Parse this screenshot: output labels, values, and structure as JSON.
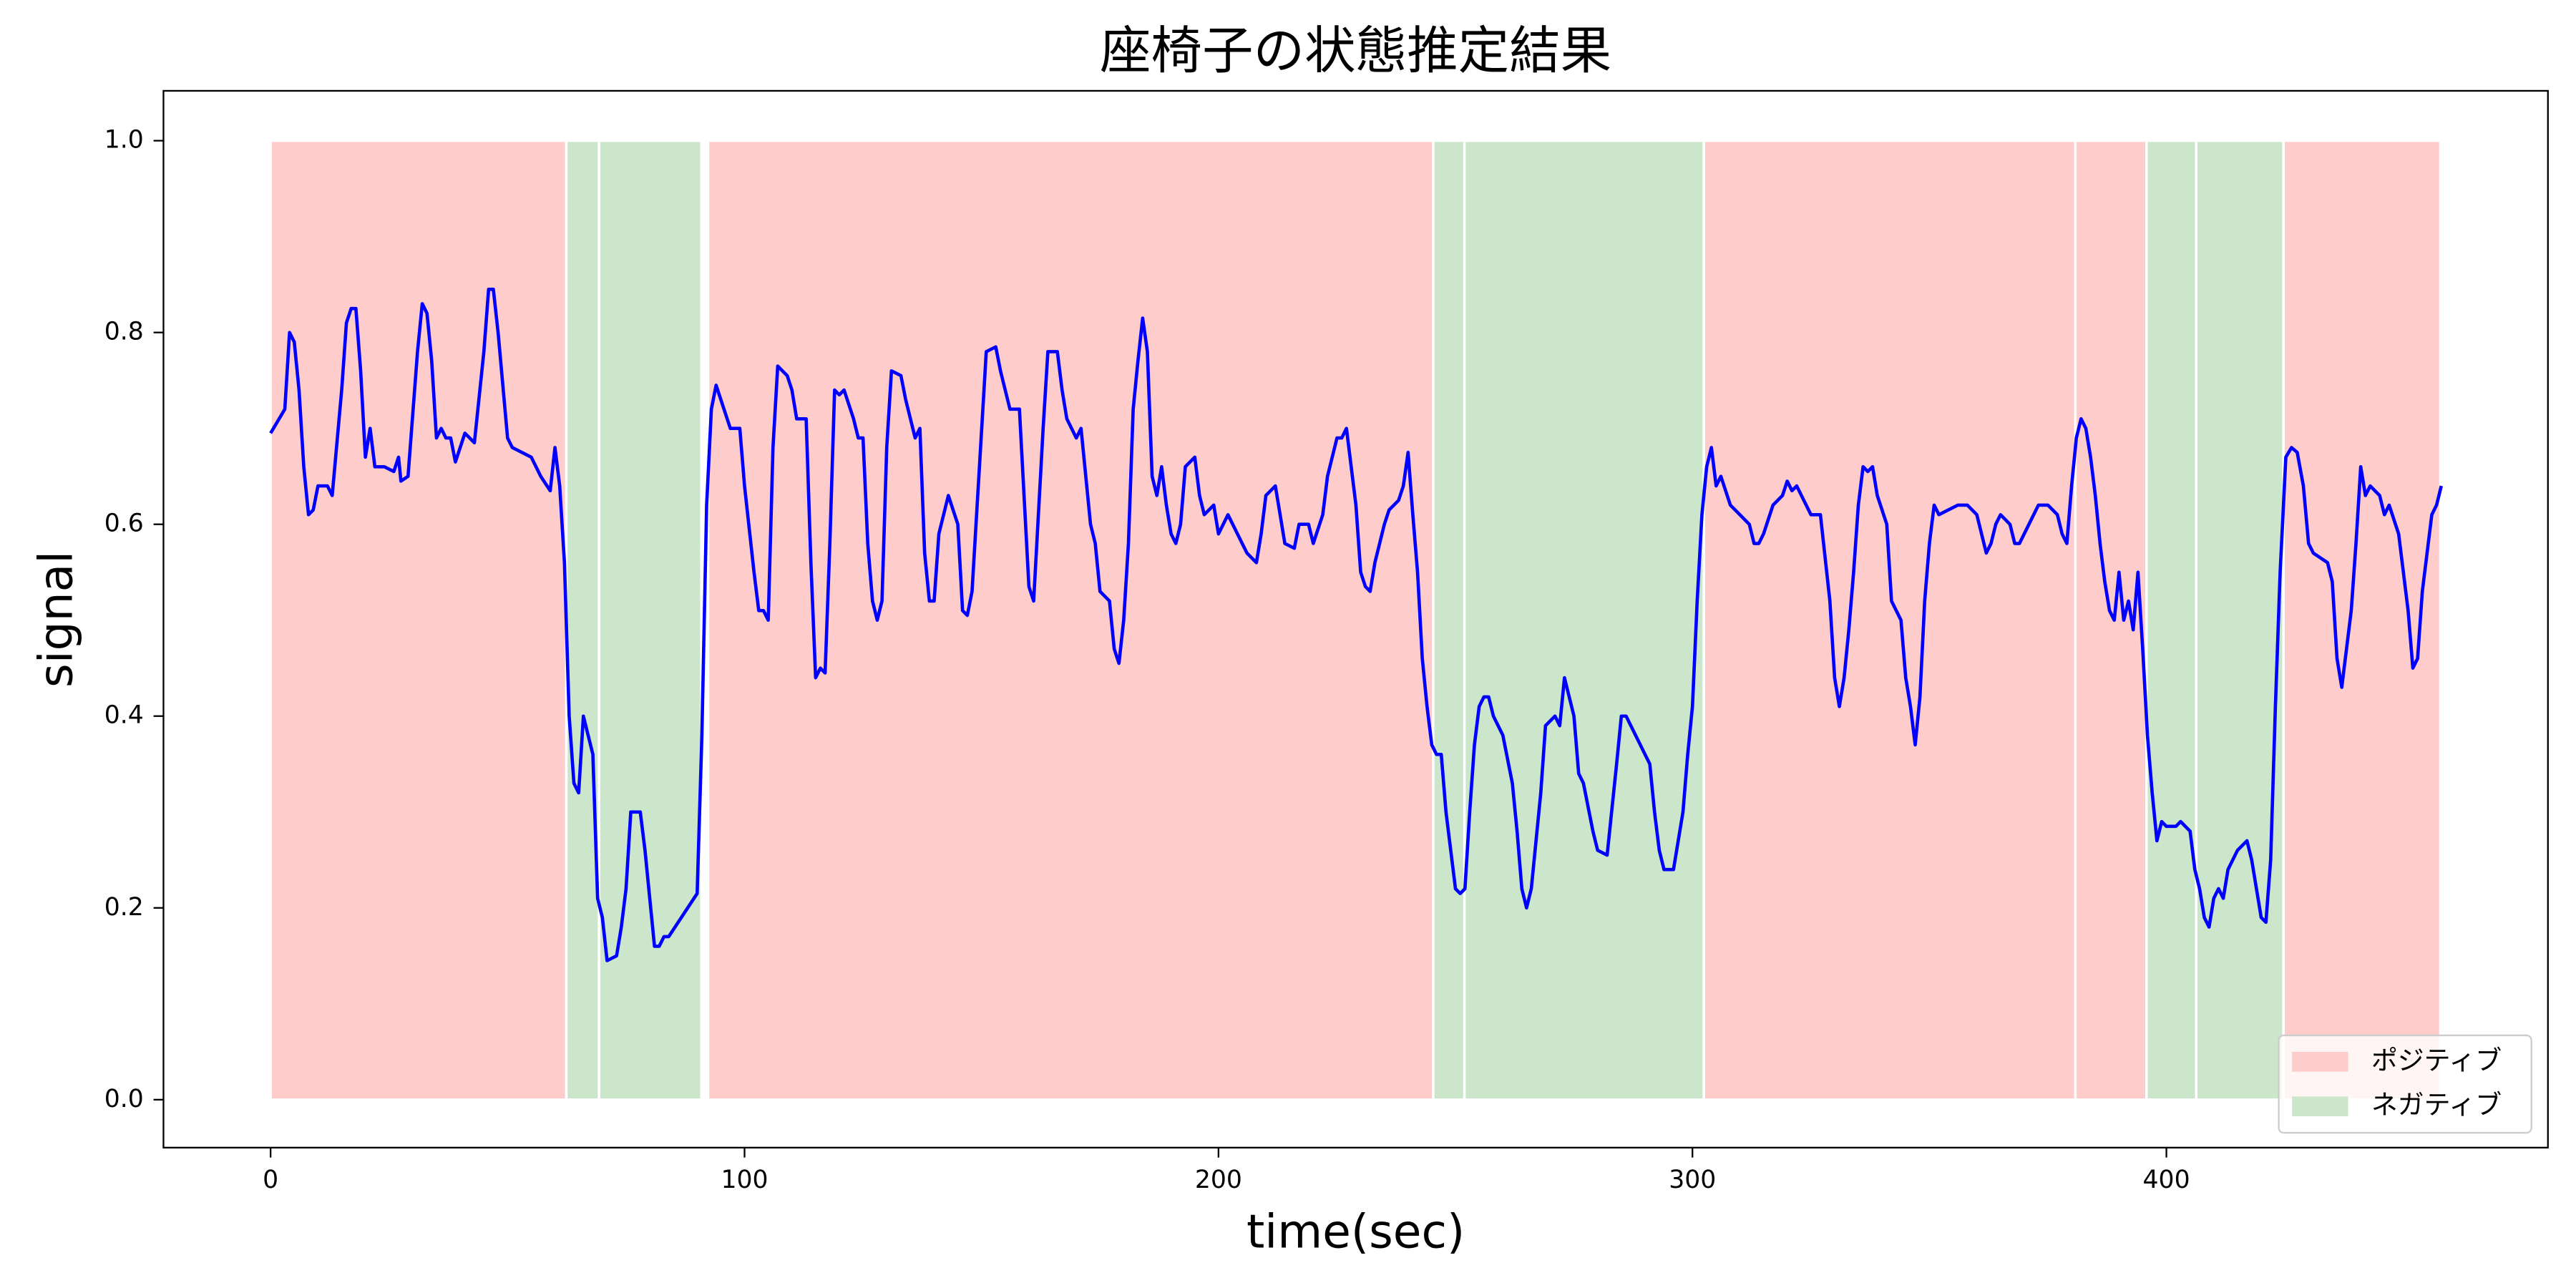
{
  "chart_data": {
    "type": "line",
    "title": "座椅子の状態推定結果",
    "x_label": "time(sec)",
    "y_label": "signal",
    "xlim": [
      -22.6,
      480.5
    ],
    "ylim": [
      -0.05,
      1.052
    ],
    "xticks": [
      0,
      100,
      200,
      300,
      400
    ],
    "yticks": [
      {
        "value": 0,
        "label": "0.0"
      },
      {
        "value": 0.2,
        "label": "0.2"
      },
      {
        "value": 0.4,
        "label": "0.4"
      },
      {
        "value": 0.6,
        "label": "0.6"
      },
      {
        "value": 0.8,
        "label": "0.8"
      },
      {
        "value": 1,
        "label": "1.0"
      }
    ],
    "legend_corner": "lower right",
    "span_y": [
      0,
      1
    ],
    "spans": [
      {
        "name": "ポジティブ",
        "color": "#ffcccc",
        "intervals": [
          [
            0,
            62.4
          ],
          [
            92.3,
            245.3
          ],
          [
            302.4,
            380.8
          ],
          [
            380.8,
            395.8
          ],
          [
            424.7,
            457.8
          ]
        ]
      },
      {
        "name": "ネガティブ",
        "color": "#cce6cc",
        "intervals": [
          [
            62.4,
            69.3
          ],
          [
            69.3,
            90.9
          ],
          [
            245.3,
            251.9
          ],
          [
            251.9,
            302.4
          ],
          [
            395.8,
            406.3
          ],
          [
            406.3,
            424.7
          ]
        ]
      }
    ],
    "line": {
      "color": "#0000ff",
      "x": [
        0,
        3,
        4,
        5,
        6,
        7,
        8,
        9,
        10,
        12,
        13,
        15,
        16,
        17,
        18,
        19,
        20,
        21,
        22,
        24,
        26,
        27,
        27.5,
        29,
        31,
        32,
        33,
        34,
        35,
        36,
        37,
        38,
        39,
        41,
        43,
        45,
        46,
        47,
        48,
        50,
        51,
        53,
        55,
        57,
        59,
        60,
        61,
        62,
        63,
        64,
        65,
        66,
        67,
        68,
        69,
        70,
        71,
        73,
        74,
        75,
        76,
        78,
        79,
        80,
        81,
        82,
        83,
        84,
        90,
        91,
        92,
        93,
        94,
        95,
        97,
        99,
        100,
        102,
        103,
        104,
        105,
        106,
        107,
        109,
        110,
        111,
        113,
        114,
        115,
        116,
        117,
        118,
        119,
        120,
        121,
        123,
        124,
        125,
        126,
        127,
        128,
        129,
        130,
        131,
        133,
        134,
        136,
        137,
        138,
        139,
        140,
        141,
        143,
        145,
        146,
        147,
        148,
        151,
        153,
        154,
        156,
        158,
        160,
        161,
        163,
        164,
        166,
        167,
        168,
        169,
        170,
        171,
        173,
        174,
        175,
        177,
        178,
        179,
        180,
        181,
        182,
        183,
        184,
        185,
        186,
        187,
        188,
        189,
        190,
        191,
        192,
        193,
        195,
        196,
        197,
        199,
        200,
        202,
        204,
        206,
        208,
        209,
        210,
        212,
        213,
        214,
        216,
        217,
        219,
        220,
        222,
        223,
        225,
        226,
        227,
        228,
        229,
        230,
        231,
        232,
        233,
        235,
        236,
        238,
        239,
        240,
        241,
        242,
        243,
        244,
        245,
        246,
        247,
        248,
        249,
        250,
        251,
        252,
        253,
        254,
        255,
        256,
        257,
        258,
        260,
        262,
        263,
        264,
        265,
        266,
        268,
        269,
        271,
        272,
        273,
        274,
        275,
        276,
        277,
        279,
        280,
        282,
        284,
        285,
        286,
        288,
        290,
        291,
        292,
        293,
        294,
        296,
        298,
        299,
        300,
        301,
        302,
        303,
        304,
        305,
        306,
        308,
        310,
        312,
        313,
        314,
        315,
        317,
        319,
        320,
        321,
        322,
        324,
        325,
        327,
        329,
        330,
        331,
        332,
        333,
        334,
        335,
        336,
        337,
        338,
        339,
        341,
        342,
        343,
        344,
        345,
        346,
        347,
        348,
        349,
        350,
        351,
        352,
        354,
        356,
        358,
        360,
        362,
        363,
        364,
        365,
        367,
        368,
        369,
        371,
        373,
        375,
        377,
        378,
        379,
        380,
        381,
        382,
        383,
        384,
        385,
        386,
        387,
        388,
        389,
        390,
        391,
        392,
        393,
        394,
        395,
        396,
        397,
        398,
        399,
        400,
        402,
        403,
        405,
        406,
        407,
        408,
        409,
        410,
        411,
        412,
        413,
        414,
        415,
        417,
        418,
        419,
        420,
        421,
        422,
        423,
        424,
        425.2,
        426.4,
        427.6,
        428.9,
        430,
        431,
        434,
        435,
        436,
        437,
        439,
        440,
        441,
        442,
        443,
        445,
        446,
        447,
        449,
        451,
        452,
        453,
        454,
        456,
        457,
        458
      ],
      "values": [
        0.695,
        0.72,
        0.8,
        0.79,
        0.74,
        0.66,
        0.61,
        0.615,
        0.64,
        0.64,
        0.63,
        0.74,
        0.81,
        0.825,
        0.825,
        0.76,
        0.67,
        0.7,
        0.66,
        0.66,
        0.655,
        0.67,
        0.645,
        0.65,
        0.78,
        0.83,
        0.82,
        0.77,
        0.69,
        0.7,
        0.69,
        0.69,
        0.665,
        0.695,
        0.685,
        0.78,
        0.845,
        0.845,
        0.8,
        0.69,
        0.68,
        0.675,
        0.67,
        0.65,
        0.635,
        0.68,
        0.64,
        0.56,
        0.4,
        0.33,
        0.32,
        0.4,
        0.38,
        0.36,
        0.21,
        0.19,
        0.145,
        0.15,
        0.18,
        0.22,
        0.3,
        0.3,
        0.26,
        0.21,
        0.16,
        0.16,
        0.17,
        0.17,
        0.215,
        0.38,
        0.62,
        0.72,
        0.745,
        0.73,
        0.7,
        0.7,
        0.64,
        0.55,
        0.51,
        0.51,
        0.5,
        0.68,
        0.765,
        0.755,
        0.74,
        0.71,
        0.71,
        0.56,
        0.44,
        0.45,
        0.445,
        0.58,
        0.74,
        0.735,
        0.74,
        0.71,
        0.69,
        0.69,
        0.58,
        0.52,
        0.5,
        0.52,
        0.68,
        0.76,
        0.755,
        0.73,
        0.69,
        0.7,
        0.57,
        0.52,
        0.52,
        0.59,
        0.63,
        0.6,
        0.51,
        0.505,
        0.53,
        0.78,
        0.785,
        0.76,
        0.72,
        0.72,
        0.535,
        0.52,
        0.7,
        0.78,
        0.78,
        0.74,
        0.71,
        0.7,
        0.69,
        0.7,
        0.6,
        0.58,
        0.53,
        0.52,
        0.47,
        0.455,
        0.5,
        0.58,
        0.72,
        0.77,
        0.815,
        0.78,
        0.65,
        0.63,
        0.66,
        0.62,
        0.59,
        0.58,
        0.6,
        0.66,
        0.67,
        0.63,
        0.61,
        0.62,
        0.59,
        0.61,
        0.59,
        0.57,
        0.56,
        0.59,
        0.63,
        0.64,
        0.61,
        0.58,
        0.575,
        0.6,
        0.6,
        0.58,
        0.61,
        0.65,
        0.69,
        0.69,
        0.7,
        0.66,
        0.62,
        0.55,
        0.535,
        0.53,
        0.56,
        0.6,
        0.615,
        0.625,
        0.64,
        0.675,
        0.61,
        0.55,
        0.46,
        0.41,
        0.37,
        0.36,
        0.36,
        0.3,
        0.26,
        0.22,
        0.215,
        0.22,
        0.3,
        0.37,
        0.41,
        0.42,
        0.42,
        0.4,
        0.38,
        0.33,
        0.28,
        0.22,
        0.2,
        0.22,
        0.32,
        0.39,
        0.4,
        0.39,
        0.44,
        0.42,
        0.4,
        0.34,
        0.33,
        0.28,
        0.26,
        0.255,
        0.35,
        0.4,
        0.4,
        0.38,
        0.36,
        0.35,
        0.3,
        0.26,
        0.24,
        0.24,
        0.3,
        0.36,
        0.41,
        0.52,
        0.61,
        0.66,
        0.68,
        0.64,
        0.65,
        0.62,
        0.61,
        0.6,
        0.58,
        0.58,
        0.59,
        0.62,
        0.63,
        0.645,
        0.635,
        0.64,
        0.62,
        0.61,
        0.61,
        0.52,
        0.44,
        0.41,
        0.44,
        0.49,
        0.55,
        0.62,
        0.66,
        0.655,
        0.66,
        0.63,
        0.6,
        0.52,
        0.51,
        0.5,
        0.44,
        0.41,
        0.37,
        0.42,
        0.52,
        0.58,
        0.62,
        0.61,
        0.615,
        0.62,
        0.62,
        0.61,
        0.57,
        0.58,
        0.6,
        0.61,
        0.6,
        0.58,
        0.58,
        0.6,
        0.62,
        0.62,
        0.61,
        0.59,
        0.58,
        0.64,
        0.69,
        0.71,
        0.7,
        0.67,
        0.63,
        0.58,
        0.54,
        0.51,
        0.5,
        0.55,
        0.5,
        0.52,
        0.49,
        0.55,
        0.47,
        0.38,
        0.32,
        0.27,
        0.29,
        0.285,
        0.285,
        0.29,
        0.28,
        0.24,
        0.22,
        0.19,
        0.18,
        0.21,
        0.22,
        0.21,
        0.24,
        0.25,
        0.26,
        0.27,
        0.25,
        0.22,
        0.19,
        0.185,
        0.25,
        0.41,
        0.55,
        0.67,
        0.68,
        0.675,
        0.64,
        0.58,
        0.57,
        0.56,
        0.54,
        0.46,
        0.43,
        0.51,
        0.58,
        0.66,
        0.63,
        0.64,
        0.63,
        0.61,
        0.62,
        0.59,
        0.51,
        0.45,
        0.46,
        0.53,
        0.61,
        0.62,
        0.64
      ]
    }
  }
}
